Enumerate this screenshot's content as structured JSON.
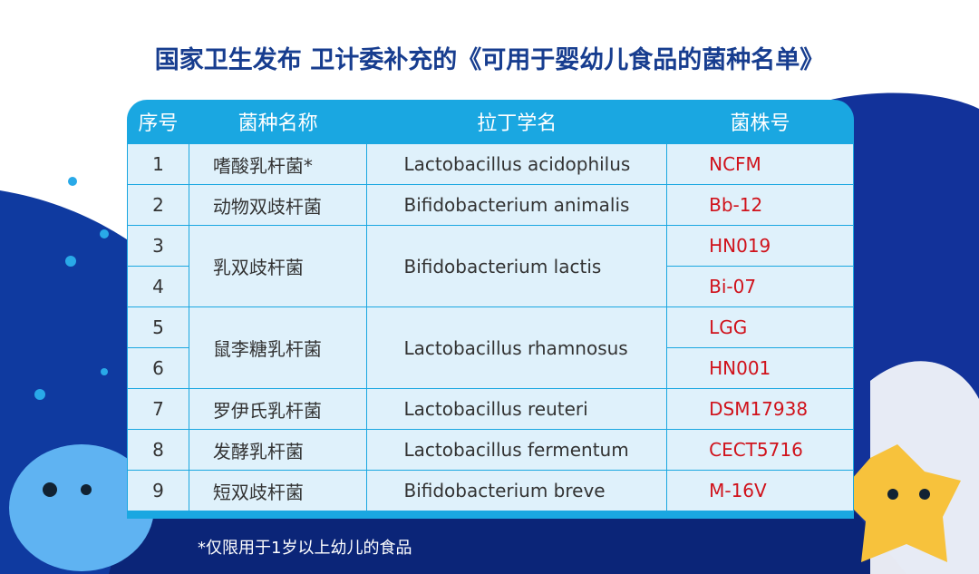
{
  "title": "国家卫生发布 卫计委补充的《可用于婴幼儿食品的菌种名单》",
  "headers": [
    "序号",
    "菌种名称",
    "拉丁学名",
    "菌株号"
  ],
  "rows": [
    {
      "no": "1",
      "name": "嗜酸乳杆菌*",
      "latin": "Lactobacillus acidophilus",
      "strains": [
        "NCFM"
      ]
    },
    {
      "no": "2",
      "name": "动物双歧杆菌",
      "latin": "Bifidobacterium animalis",
      "strains": [
        "Bb-12"
      ]
    },
    {
      "no": [
        "3",
        "4"
      ],
      "name": "乳双歧杆菌",
      "latin": "Bifidobacterium lactis",
      "strains": [
        "HN019",
        "Bi-07"
      ]
    },
    {
      "no": [
        "5",
        "6"
      ],
      "name": "鼠李糖乳杆菌",
      "latin": "Lactobacillus rhamnosus",
      "strains": [
        "LGG",
        "HN001"
      ]
    },
    {
      "no": "7",
      "name": "罗伊氏乳杆菌",
      "latin": "Lactobacillus reuteri",
      "strains": [
        "DSM17938"
      ]
    },
    {
      "no": "8",
      "name": "发酵乳杆菌",
      "latin": "Lactobacillus fermentum",
      "strains": [
        "CECT5716"
      ]
    },
    {
      "no": "9",
      "name": "短双歧杆菌",
      "latin": "Bifidobacterium breve",
      "strains": [
        "M-16V"
      ]
    }
  ],
  "footnote": "*仅限用于1岁以上幼儿的食品",
  "colors": {
    "title": "#173d8f",
    "header": "#1aa7e1",
    "cell": "#dff1fb",
    "strain": "#d0121b",
    "background_wave": "#0d2a86"
  }
}
